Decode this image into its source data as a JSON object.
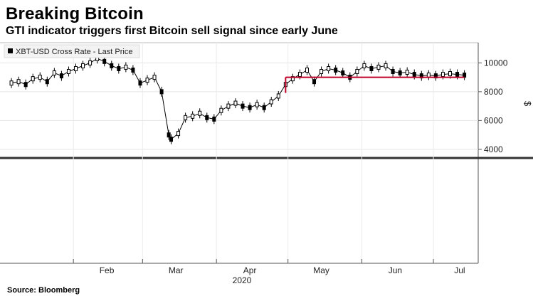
{
  "title": "Breaking Bitcoin",
  "subtitle": "GTI indicator triggers first Bitcoin sell signal since early June",
  "source": "Source: Bloomberg",
  "legend_label": "XBT-USD Cross Rate - Last Price",
  "y_unit": "$",
  "colors": {
    "candles": "#000000",
    "signal_line": "#c0002a",
    "grid": "#dddddd",
    "baseline": "#333333"
  },
  "chart_data": {
    "type": "line",
    "title": "Breaking Bitcoin",
    "ylabel": "$",
    "year_label": "2020",
    "x_ticks": [
      "Feb",
      "Mar",
      "Apr",
      "May",
      "Jun",
      "Jul"
    ],
    "y_ticks": [
      4000,
      6000,
      8000,
      10000
    ],
    "ylim": [
      3600,
      11400
    ],
    "series": [
      {
        "name": "XBT-USD Cross Rate - Last Price",
        "x": [
          "Jan 06",
          "Jan 09",
          "Jan 12",
          "Jan 15",
          "Jan 18",
          "Jan 21",
          "Jan 24",
          "Jan 27",
          "Jan 30",
          "Feb 02",
          "Feb 05",
          "Feb 08",
          "Feb 11",
          "Feb 14",
          "Feb 17",
          "Feb 20",
          "Feb 23",
          "Feb 26",
          "Feb 29",
          "Mar 03",
          "Mar 06",
          "Mar 09",
          "Mar 12",
          "Mar 13",
          "Mar 16",
          "Mar 19",
          "Mar 22",
          "Mar 25",
          "Mar 28",
          "Mar 31",
          "Apr 03",
          "Apr 06",
          "Apr 09",
          "Apr 12",
          "Apr 15",
          "Apr 18",
          "Apr 21",
          "Apr 24",
          "Apr 27",
          "Apr 30",
          "May 03",
          "May 06",
          "May 09",
          "May 12",
          "May 15",
          "May 18",
          "May 21",
          "May 24",
          "May 27",
          "May 30",
          "Jun 02",
          "Jun 05",
          "Jun 08",
          "Jun 11",
          "Jun 14",
          "Jun 17",
          "Jun 20",
          "Jun 23",
          "Jun 26",
          "Jun 29",
          "Jul 02",
          "Jul 05",
          "Jul 08",
          "Jul 11",
          "Jul 14"
        ],
        "values": [
          8600,
          8700,
          8500,
          8900,
          9000,
          8700,
          9300,
          9100,
          9400,
          9600,
          9800,
          10000,
          10300,
          10100,
          9800,
          9600,
          9700,
          9500,
          8600,
          8800,
          9000,
          8000,
          5000,
          4700,
          5100,
          6200,
          6300,
          6500,
          6200,
          6100,
          6700,
          7000,
          7200,
          7000,
          6900,
          7100,
          6900,
          7300,
          7700,
          8500,
          8900,
          9200,
          9500,
          8700,
          9400,
          9600,
          9500,
          9300,
          9000,
          9400,
          9800,
          9600,
          9700,
          9800,
          9400,
          9300,
          9350,
          9200,
          9100,
          9150,
          9100,
          9200,
          9250,
          9200,
          9150
        ]
      }
    ],
    "annotations": [
      {
        "type": "signal_line",
        "value": 9000,
        "from": "Apr 30",
        "to": "Jul 14"
      }
    ]
  }
}
